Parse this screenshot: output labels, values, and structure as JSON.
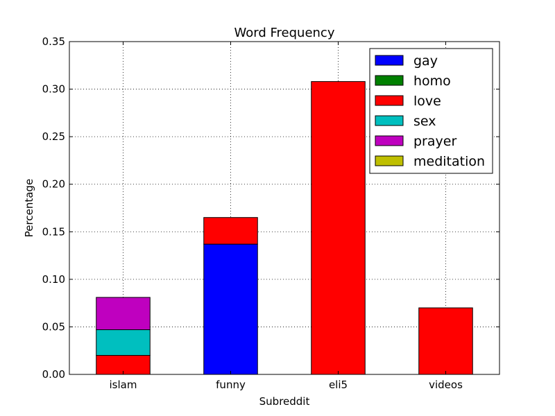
{
  "chart_data": {
    "type": "bar",
    "stacked": true,
    "title": "Word Frequency",
    "xlabel": "Subreddit",
    "ylabel": "Percentage",
    "ylim": [
      0,
      0.35
    ],
    "yticks": [
      "0.00",
      "0.05",
      "0.10",
      "0.15",
      "0.20",
      "0.25",
      "0.30",
      "0.35"
    ],
    "categories": [
      "islam",
      "funny",
      "eli5",
      "videos"
    ],
    "series": [
      {
        "name": "gay",
        "color": "#0000ff",
        "values": [
          0,
          0.137,
          0,
          0
        ]
      },
      {
        "name": "homo",
        "color": "#008000",
        "values": [
          0,
          0,
          0,
          0
        ]
      },
      {
        "name": "love",
        "color": "#ff0000",
        "values": [
          0.02,
          0.028,
          0.308,
          0.07
        ]
      },
      {
        "name": "sex",
        "color": "#00bfbf",
        "values": [
          0.027,
          0,
          0,
          0
        ]
      },
      {
        "name": "prayer",
        "color": "#bf00bf",
        "values": [
          0.034,
          0,
          0,
          0
        ]
      },
      {
        "name": "meditation",
        "color": "#bfbf00",
        "values": [
          0,
          0,
          0,
          0
        ]
      }
    ],
    "grid": true,
    "legend_position": "top-right"
  }
}
